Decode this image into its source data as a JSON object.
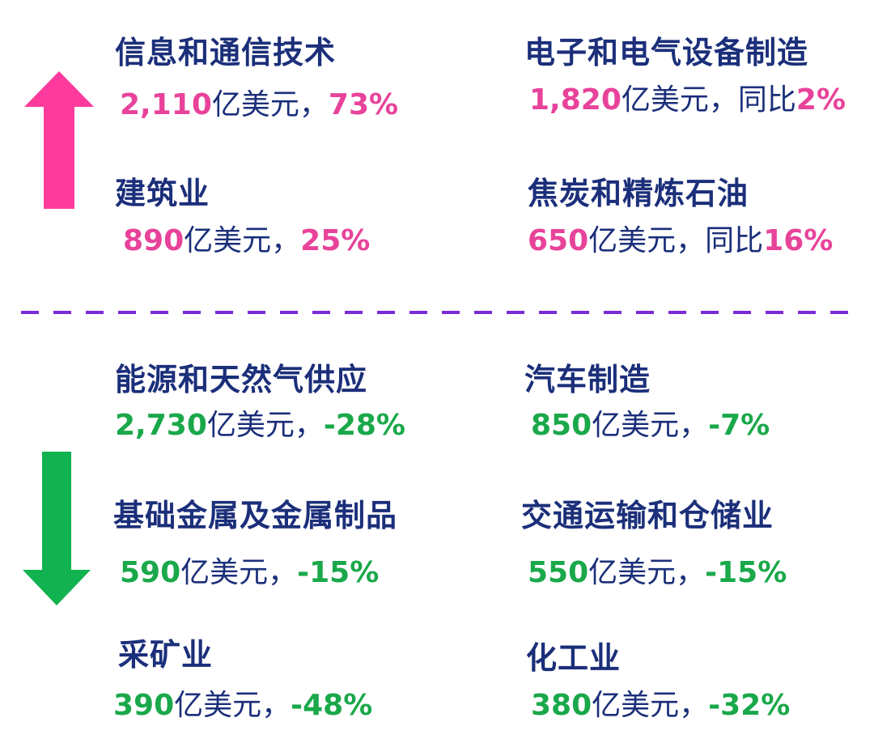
{
  "colors": {
    "title": "#1b2f7a",
    "increase": "#e8439a",
    "decrease": "#1aa84a",
    "divider": "#7a2bd6"
  },
  "increase": {
    "arrow_icon": "up-arrow-icon",
    "items": [
      {
        "name": "信息和通信技术",
        "value": "2,110",
        "unit": "亿美元，",
        "prefix": "",
        "pct": "73%"
      },
      {
        "name": "电子和电气设备制造",
        "value": "1,820",
        "unit": "亿美元，",
        "prefix": "同比",
        "pct": "2%"
      },
      {
        "name": "建筑业",
        "value": "890",
        "unit": "亿美元，",
        "prefix": "",
        "pct": "25%"
      },
      {
        "name": "焦炭和精炼石油",
        "value": "650",
        "unit": "亿美元，",
        "prefix": "同比",
        "pct": "16%"
      }
    ]
  },
  "decrease": {
    "arrow_icon": "down-arrow-icon",
    "items": [
      {
        "name": "能源和天然气供应",
        "value": "2,730",
        "unit": "亿美元，",
        "pct": "-28%"
      },
      {
        "name": "汽车制造",
        "value": "850",
        "unit": "亿美元，",
        "pct": "-7%"
      },
      {
        "name": "基础金属及金属制品",
        "value": "590",
        "unit": "亿美元，",
        "pct": "-15%"
      },
      {
        "name": "交通运输和仓储业",
        "value": "550",
        "unit": "亿美元，",
        "pct": "-15%"
      },
      {
        "name": "采矿业",
        "value": "390",
        "unit": "亿美元，",
        "pct": "-48%"
      },
      {
        "name": "化工业",
        "value": "380",
        "unit": "亿美元，",
        "pct": "-32%"
      }
    ]
  }
}
